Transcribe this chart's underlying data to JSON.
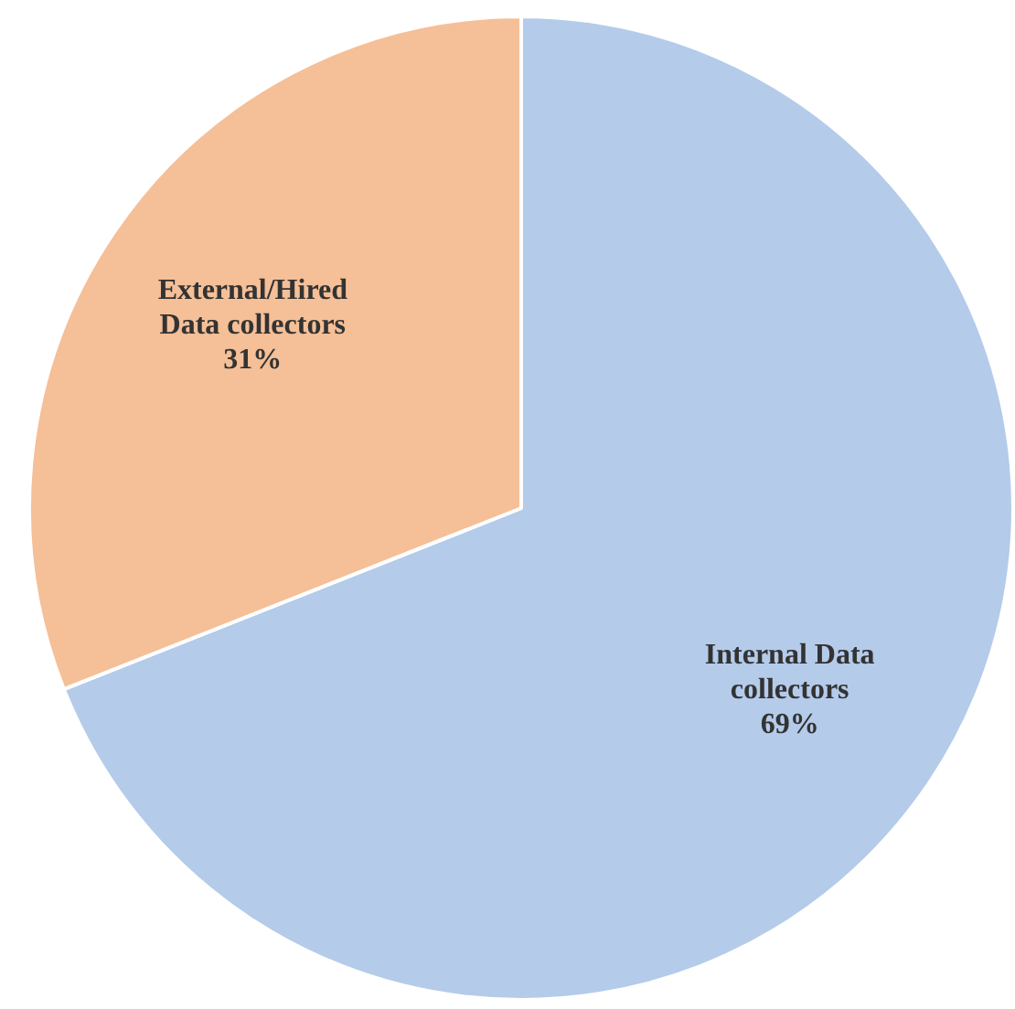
{
  "chart_data": {
    "type": "pie",
    "categories": [
      "Internal Data collectors",
      "External/Hired Data collectors"
    ],
    "values": [
      69,
      31
    ],
    "colors": [
      "#b4cbea",
      "#f5bf97"
    ],
    "value_labels": [
      "69%",
      "31%"
    ],
    "legend": false
  }
}
